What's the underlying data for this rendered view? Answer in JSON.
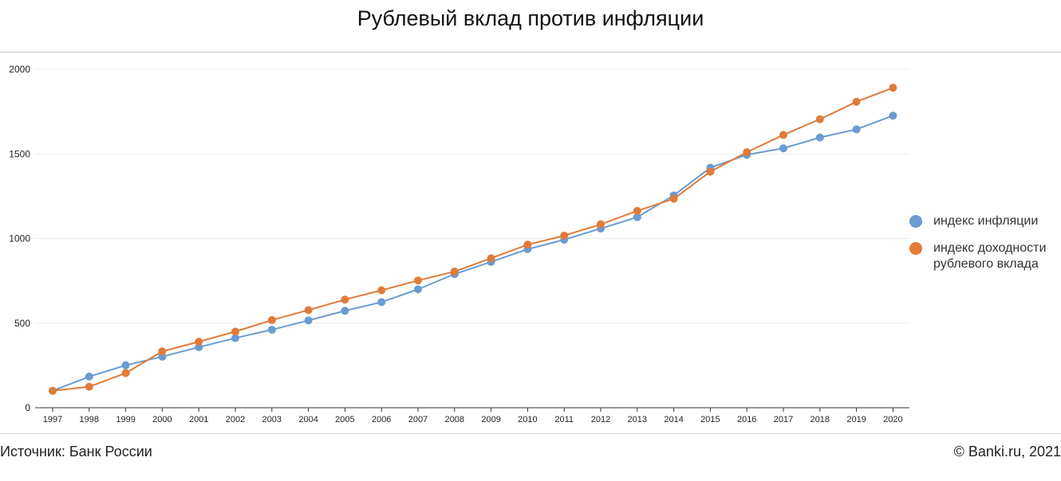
{
  "title": "Рублевый вклад против инфляции",
  "footer": {
    "source": "Источник: Банк России",
    "copyright": "© Banki.ru, 2021"
  },
  "colors": {
    "inflation": "#6a9bd1",
    "deposit": "#e07b39",
    "grid": "#eeeeee",
    "axis": "#333333"
  },
  "chart_data": {
    "type": "line",
    "title": "Рублевый вклад против инфляции",
    "xlabel": "",
    "ylabel": "",
    "ylim": [
      0,
      2000
    ],
    "yticks": [
      0,
      500,
      1000,
      1500,
      2000
    ],
    "grid": true,
    "legend_position": "right",
    "x": [
      "1997",
      "1998",
      "1999",
      "2000",
      "2001",
      "2002",
      "2003",
      "2004",
      "2005",
      "2006",
      "2007",
      "2008",
      "2009",
      "2010",
      "2011",
      "2012",
      "2013",
      "2014",
      "2015",
      "2016",
      "2017",
      "2018",
      "2019",
      "2020"
    ],
    "series": [
      {
        "name": "индекс инфляции",
        "color": "#6a9bd1",
        "values": [
          100,
          184,
          251,
          302,
          358,
          412,
          461,
          516,
          573,
          624,
          700,
          790,
          862,
          937,
          993,
          1059,
          1126,
          1255,
          1418,
          1495,
          1533,
          1597,
          1645,
          1726
        ]
      },
      {
        "name": "индекс доходности рублевого вклада",
        "color": "#e07b39",
        "values": [
          100,
          124,
          205,
          333,
          390,
          450,
          518,
          577,
          639,
          694,
          752,
          805,
          883,
          964,
          1017,
          1084,
          1163,
          1235,
          1395,
          1510,
          1612,
          1705,
          1808,
          1891
        ]
      }
    ]
  }
}
